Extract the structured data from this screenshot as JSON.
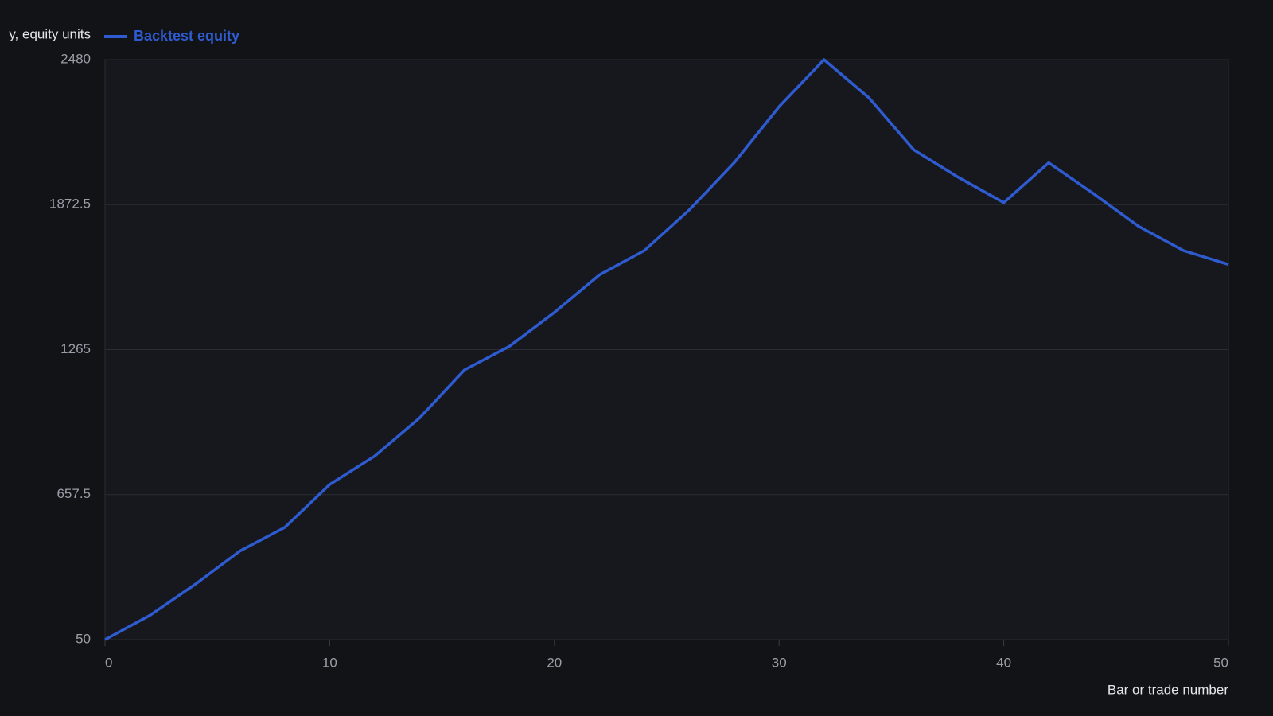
{
  "chart_data": {
    "type": "line",
    "y_label": "y, equity units",
    "x_label": "Bar or trade number",
    "x": [
      0,
      2,
      4,
      6,
      8,
      10,
      12,
      14,
      16,
      18,
      20,
      22,
      24,
      26,
      28,
      30,
      32,
      34,
      36,
      38,
      40,
      42,
      44,
      46,
      48,
      50
    ],
    "series": [
      {
        "name": "Backtest equity",
        "color": "#2f5bd0",
        "values": [
          50,
          152,
          281,
          421,
          520,
          700,
          819,
          979,
          1180,
          1279,
          1421,
          1578,
          1680,
          1850,
          2048,
          2283,
          2480,
          2320,
          2102,
          1986,
          1881,
          2048,
          1918,
          1782,
          1680,
          1622
        ]
      }
    ],
    "xlim": [
      0,
      50
    ],
    "xticks": [
      0,
      10,
      20,
      30,
      40,
      50
    ],
    "ylim": [
      50,
      2480
    ],
    "yticks": [
      50,
      657.5,
      1265,
      1872.5,
      2480
    ],
    "grid": true
  }
}
